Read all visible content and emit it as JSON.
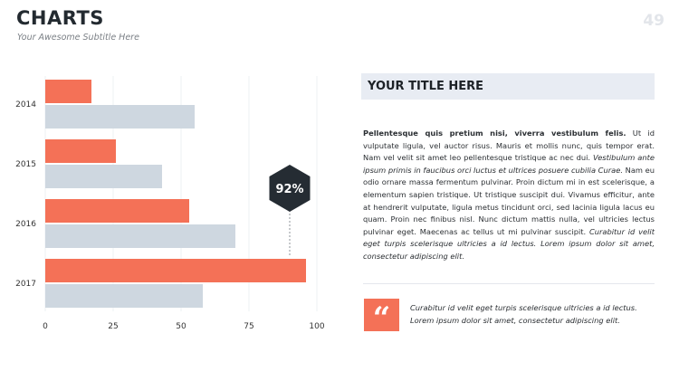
{
  "header": {
    "title": "CHARTS",
    "subtitle": "Your Awesome Subtitle Here",
    "page_number": "49"
  },
  "content": {
    "title": "YOUR TITLE HERE",
    "paragraph_bold": "Pellentesque quis pretium nisi, viverra vestibulum felis.",
    "paragraph_1": " Ut id vulputate ligula, vel auctor risus. Mauris et mollis nunc, quis tempor erat. Nam vel velit sit amet leo pellentesque tristique ac nec dui. ",
    "paragraph_italic_1": "Vestibulum ante ipsum primis in faucibus orci luctus et ultrices posuere cubilia Curae.",
    "paragraph_2": " Nam eu odio ornare massa fermentum pulvinar. Proin dictum mi in est scelerisque, a elementum sapien tristique. Ut tristique suscipit dui. Vivamus efficitur, ante at hendrerit vulputate, ligula metus tincidunt orci, sed lacinia ligula lacus eu quam.  Proin nec finibus nisl. Nunc dictum mattis nulla, vel ultricies lectus pulvinar eget. Maecenas ac tellus ut mi pulvinar suscipit. ",
    "paragraph_italic_2": "Curabitur id velit eget turpis scelerisque ultricies a id lectus. Lorem ipsum dolor sit amet, consectetur adipiscing elit.",
    "quote_mark": "“",
    "quote_text": "Curabitur id velit eget turpis scelerisque ultricies a id lectus. Lorem ipsum dolor sit amet, consectetur adipiscing elit."
  },
  "colors": {
    "accent": "#f47157",
    "secondary_bar": "#ced7e0",
    "badge": "#252c33",
    "title_bar": "#e8ecf3"
  },
  "chart_data": {
    "type": "bar",
    "orientation": "horizontal",
    "categories": [
      "2014",
      "2015",
      "2016",
      "2017"
    ],
    "series": [
      {
        "values": [
          17,
          26,
          53,
          96
        ],
        "color": "#f47157"
      },
      {
        "values": [
          55,
          43,
          70,
          58
        ],
        "color": "#ced7e0"
      }
    ],
    "xlim": [
      0,
      100
    ],
    "xticks": [
      "0",
      "25",
      "50",
      "75",
      "100"
    ],
    "grid": true,
    "annotation": {
      "label": "92%",
      "value": 90
    }
  }
}
